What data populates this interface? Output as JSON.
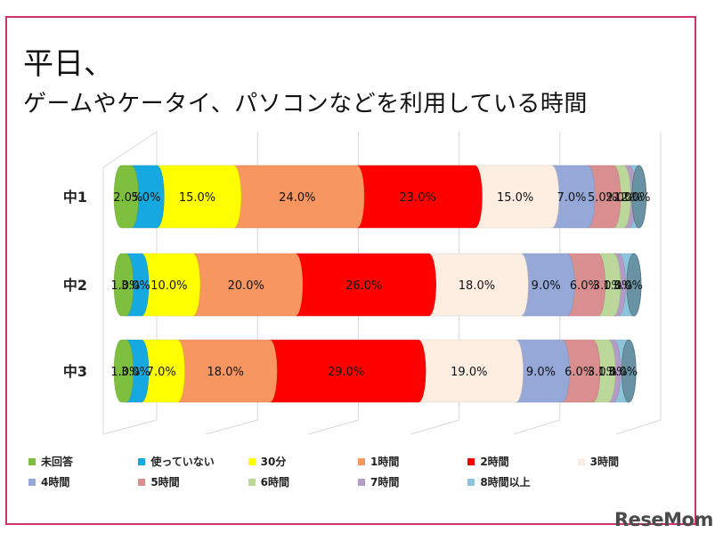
{
  "title_line1": "平日、",
  "title_line2": "ゲームやケータイ、パソコンなどを利用している時間",
  "watermark": "ReseMom",
  "chart_data": {
    "type": "bar",
    "orientation": "horizontal",
    "stacked": true,
    "percent_stacked": true,
    "xlim": [
      0,
      100
    ],
    "grid": true,
    "legend_position": "bottom",
    "categories": [
      "中1",
      "中2",
      "中3"
    ],
    "series": [
      {
        "name": "未回答",
        "color": "#7fbf3f",
        "values": [
          2.0,
          1.0,
          1.0
        ],
        "labels": [
          "2.0%",
          "1.0%",
          "1.0%"
        ]
      },
      {
        "name": "使っていない",
        "color": "#16a9e1",
        "values": [
          5.0,
          3.0,
          3.0
        ],
        "labels": [
          "5.0%",
          "3.0%",
          "3.0%"
        ]
      },
      {
        "name": "30分",
        "color": "#ffff00",
        "values": [
          15.0,
          10.0,
          7.0
        ],
        "labels": [
          "15.0%",
          "10.0%",
          "7.0%"
        ]
      },
      {
        "name": "1時間",
        "color": "#f79660",
        "values": [
          24.0,
          20.0,
          18.0
        ],
        "labels": [
          "24.0%",
          "20.0%",
          "18.0%"
        ]
      },
      {
        "name": "2時間",
        "color": "#ff0000",
        "values": [
          23.0,
          26.0,
          29.0
        ],
        "labels": [
          "23.0%",
          "26.0%",
          "29.0%"
        ]
      },
      {
        "name": "3時間",
        "color": "#fdeee1",
        "values": [
          15.0,
          18.0,
          19.0
        ],
        "labels": [
          "15.0%",
          "18.0%",
          "19.0%"
        ]
      },
      {
        "name": "4時間",
        "color": "#95a8d8",
        "values": [
          7.0,
          9.0,
          9.0
        ],
        "labels": [
          "7.0%",
          "9.0%",
          "9.0%"
        ]
      },
      {
        "name": "5時間",
        "color": "#d98f8f",
        "values": [
          5.0,
          6.0,
          6.0
        ],
        "labels": [
          "5.0%",
          "6.0%",
          "6.0%"
        ]
      },
      {
        "name": "6時間",
        "color": "#bcd79a",
        "values": [
          2.0,
          3.0,
          3.0
        ],
        "labels": [
          "2.0%",
          "3.0%",
          "3.0%"
        ]
      },
      {
        "name": "7時間",
        "color": "#b49ac6",
        "values": [
          1.0,
          1.0,
          1.0
        ],
        "labels": [
          "1.0%",
          "1.0%",
          "1.0%"
        ]
      },
      {
        "name": "8時間以上",
        "color": "#8cc4dc",
        "values": [
          2.0,
          3.0,
          3.0
        ],
        "labels": [
          "2.0%",
          "3.0%",
          "3.0%"
        ]
      }
    ]
  }
}
